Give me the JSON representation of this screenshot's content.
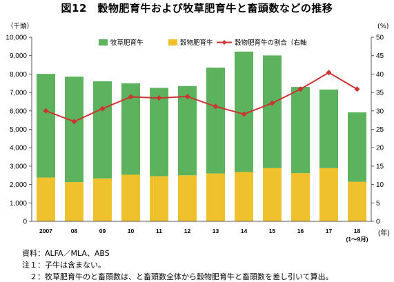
{
  "title": "図12　穀物肥育牛および牧草肥育牛と畜頭数などの推移",
  "chart_data": {
    "type": "bar",
    "stacked": true,
    "categories": [
      "2007",
      "08",
      "09",
      "10",
      "11",
      "12",
      "13",
      "14",
      "15",
      "16",
      "17",
      "18"
    ],
    "category_sublabel": {
      "index": 11,
      "text": "(1〜9月)"
    },
    "series": [
      {
        "name": "牧草肥育牛",
        "kind": "bar",
        "color": "#5db35d",
        "values": [
          5630,
          5730,
          5280,
          4970,
          4800,
          4850,
          5750,
          6540,
          6120,
          4680,
          4270,
          3770
        ]
      },
      {
        "name": "穀物肥育牛",
        "kind": "bar",
        "color": "#efc12c",
        "values": [
          2380,
          2130,
          2330,
          2530,
          2450,
          2500,
          2600,
          2680,
          2890,
          2620,
          2890,
          2150
        ]
      },
      {
        "name": "穀物肥育牛の割合（右軸",
        "kind": "line",
        "axis": "right",
        "color": "#cc3333",
        "values": [
          30.0,
          27.1,
          30.6,
          33.8,
          33.5,
          33.9,
          31.2,
          29.1,
          32.1,
          35.9,
          40.4,
          35.9
        ]
      }
    ],
    "y_left": {
      "unit": "（千頭）",
      "min": 0,
      "max": 10000,
      "step": 1000,
      "ticks": [
        "0",
        "1,000",
        "2,000",
        "3,000",
        "4,000",
        "5,000",
        "6,000",
        "7,000",
        "8,000",
        "9,000",
        "10,000"
      ]
    },
    "y_right": {
      "unit": "(%)",
      "min": 0,
      "max": 50,
      "step": 5,
      "ticks": [
        "0",
        "5",
        "10",
        "15",
        "20",
        "25",
        "30",
        "35",
        "40",
        "45",
        "50"
      ]
    },
    "x_unit": "(年)",
    "grid": false,
    "legend_position": "top"
  },
  "notes": [
    "資料：ALFA／MLA、ABS",
    "注１：子牛は含まない。",
    "　２：牧草肥育牛のと畜頭数は、と畜頭数全体から穀物肥育牛と畜頭数を差し引いて算出。"
  ]
}
